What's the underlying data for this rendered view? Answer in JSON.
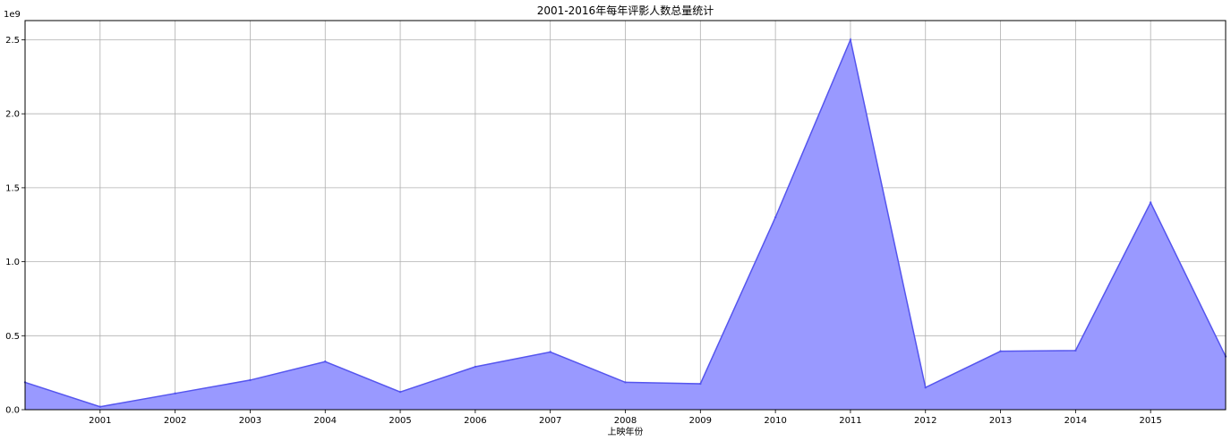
{
  "chart_data": {
    "type": "area",
    "title": "2001-2016年每年评影人数总量统计",
    "xlabel": "上映年份",
    "ylabel": "",
    "y_offset_text": "1e9",
    "x_tick_labels": [
      "2001",
      "2002",
      "2003",
      "2004",
      "2005",
      "2006",
      "2007",
      "2008",
      "2009",
      "2010",
      "2011",
      "2012",
      "2013",
      "2014",
      "2015"
    ],
    "y_tick_labels": [
      "0.0",
      "0.5",
      "1.0",
      "1.5",
      "2.0",
      "2.5"
    ],
    "y_ticks": [
      0,
      0.5,
      1.0,
      1.5,
      2.0,
      2.5
    ],
    "xlim": [
      2000,
      2016
    ],
    "ylim": [
      0,
      2.63
    ],
    "grid": true,
    "color": "#9999ff",
    "line_color": "#5555ee",
    "x": [
      2000,
      2001,
      2002,
      2003,
      2004,
      2005,
      2006,
      2007,
      2008,
      2009,
      2010,
      2011,
      2012,
      2013,
      2014,
      2015,
      2016
    ],
    "values": [
      0.185,
      0.02,
      0.11,
      0.2,
      0.325,
      0.12,
      0.29,
      0.39,
      0.185,
      0.175,
      1.3,
      2.5,
      0.15,
      0.395,
      0.4,
      1.4,
      0.36
    ]
  }
}
